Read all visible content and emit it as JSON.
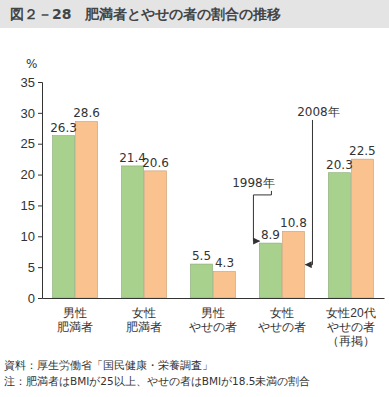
{
  "chart_data": {
    "type": "bar",
    "title": "図２－28　肥満者とやせの者の割合の推移",
    "y_label": "%",
    "categories": [
      "男性\n肥満者",
      "女性\n肥満者",
      "男性\nやせの者",
      "女性\nやせの者",
      "女性20代\nやせの者\n（再掲）"
    ],
    "series": [
      {
        "name": "1998年",
        "color": "#a9d18e",
        "values": [
          26.3,
          21.4,
          5.5,
          8.9,
          20.3
        ]
      },
      {
        "name": "2008年",
        "color": "#f9c28e",
        "values": [
          28.6,
          20.6,
          4.3,
          10.8,
          22.5
        ]
      }
    ],
    "ylim": [
      0,
      35
    ],
    "yticks": [
      0,
      5,
      10,
      15,
      20,
      25,
      30,
      35
    ],
    "grid": false,
    "data_labels": true,
    "annotations": [
      "資料：厚生労働省「国民健康・栄養調査」",
      "注：肥満者はBMIが25以上、やせの者はBMIが18.5未満の割合"
    ]
  }
}
